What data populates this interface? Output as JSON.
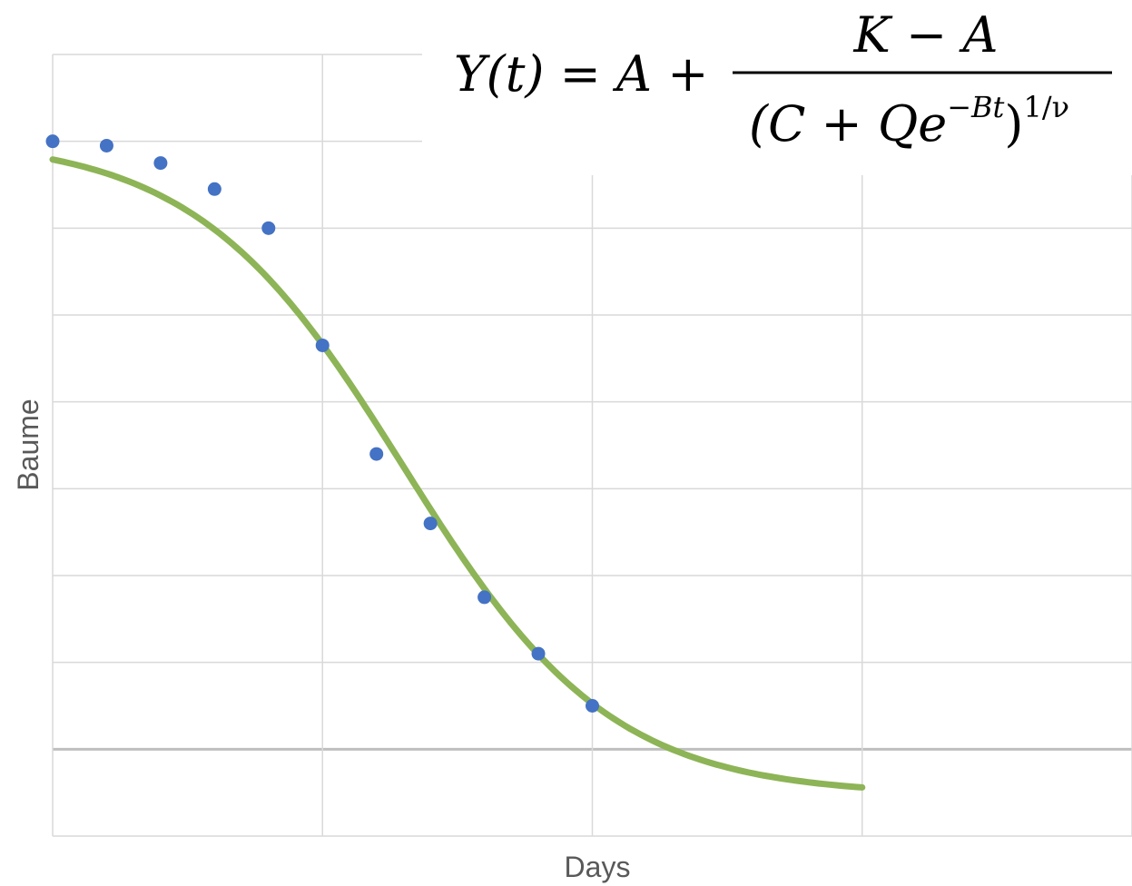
{
  "chart_data": {
    "type": "scatter",
    "xlabel": "Days",
    "ylabel": "Baume",
    "xlim": [
      0,
      20
    ],
    "ylim": [
      -1,
      8
    ],
    "grid": true,
    "x_gridlines": [
      0,
      5,
      10,
      15,
      20
    ],
    "y_gridlines": [
      -1,
      0,
      1,
      2,
      3,
      4,
      5,
      6,
      7,
      8
    ],
    "series": [
      {
        "type": "scatter",
        "color": "#4472C4",
        "points": [
          {
            "x": 0,
            "y": 7.0
          },
          {
            "x": 1,
            "y": 6.95
          },
          {
            "x": 2,
            "y": 6.75
          },
          {
            "x": 3,
            "y": 6.45
          },
          {
            "x": 4,
            "y": 6.0
          },
          {
            "x": 5,
            "y": 4.65
          },
          {
            "x": 6,
            "y": 3.4
          },
          {
            "x": 7,
            "y": 2.6
          },
          {
            "x": 8,
            "y": 1.75
          },
          {
            "x": 9,
            "y": 1.1
          },
          {
            "x": 10,
            "y": 0.5
          }
        ]
      },
      {
        "type": "line",
        "color": "#8DB456",
        "curve": {
          "form": "generalized-logistic",
          "x_range": [
            0,
            15
          ],
          "lower": -0.53,
          "upper": 7.04,
          "midpoint": 6.5,
          "steepness": 0.52
        }
      }
    ],
    "annotation": {
      "lhs": "Y(t) = A +",
      "numerator": "K − A",
      "den_open": "(C + Qe",
      "den_exponent": "−Bt",
      "den_close": ")",
      "den_power": "1/ν"
    }
  }
}
